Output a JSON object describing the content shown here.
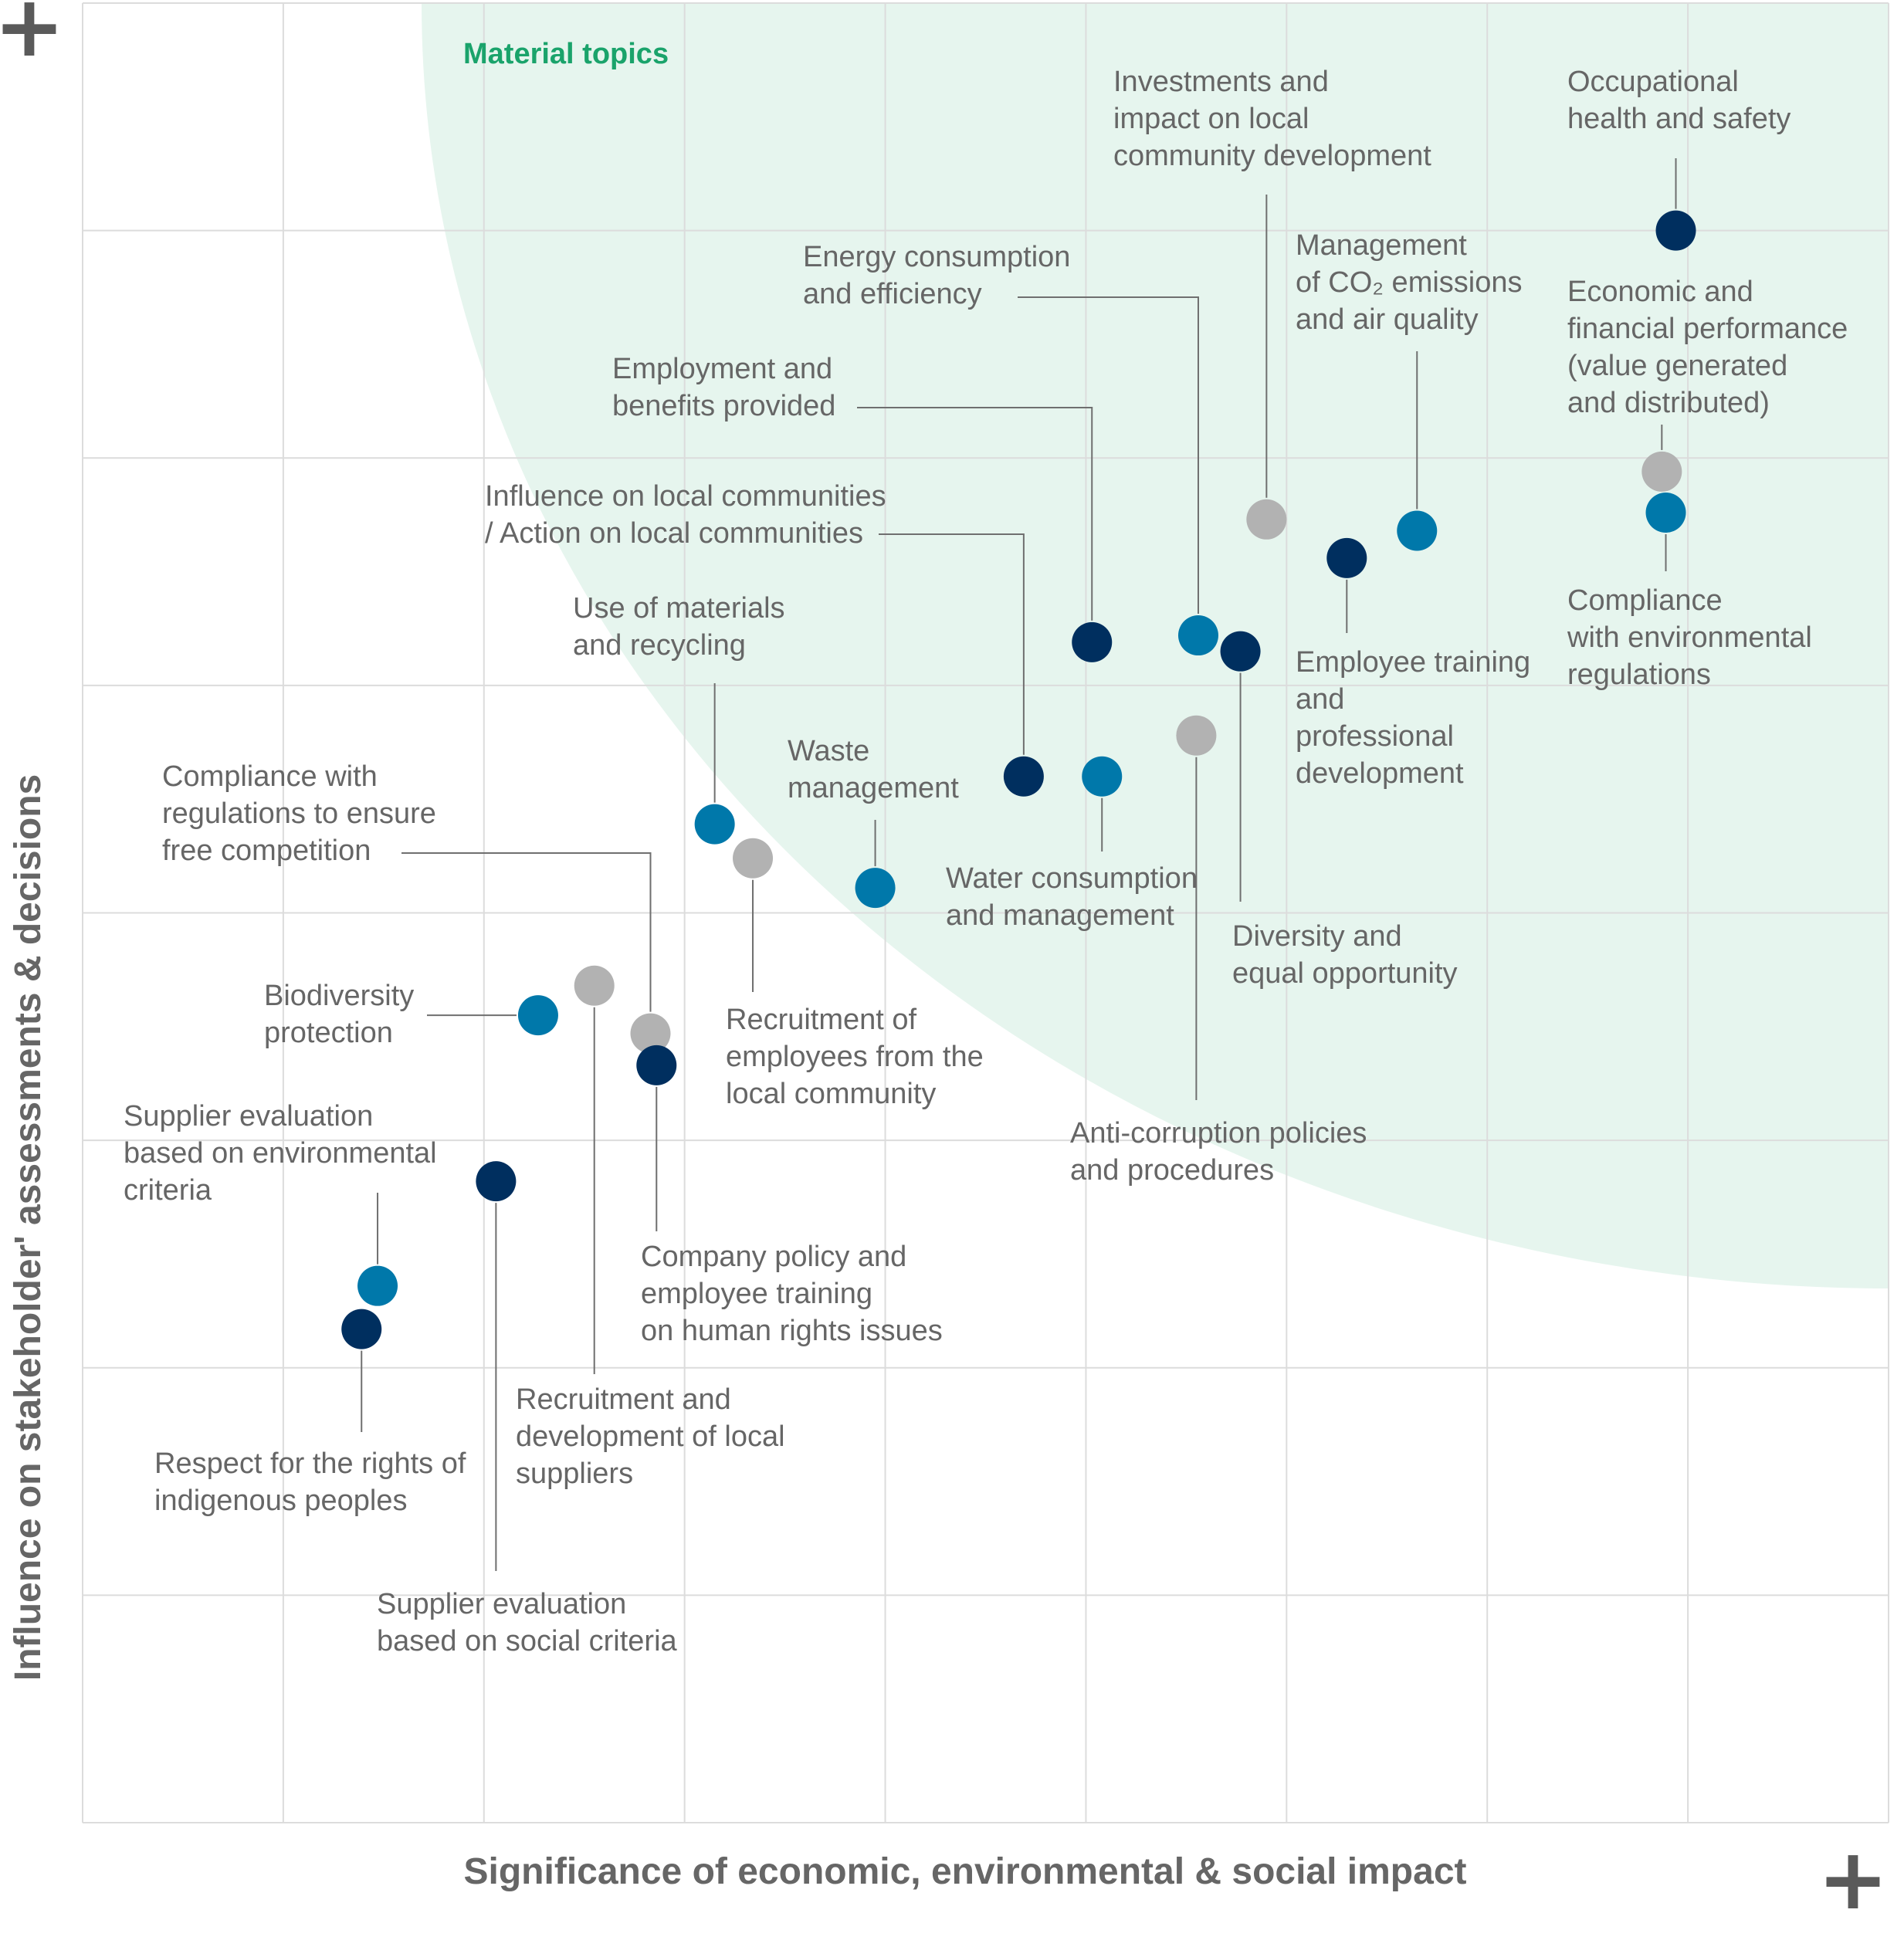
{
  "chart_data": {
    "type": "scatter",
    "title": "",
    "xlabel": "Significance of economic, environmental & social impact",
    "ylabel": "Influence on stakeholder' assessments & decisions",
    "xlim": [
      0,
      9
    ],
    "ylim": [
      0,
      8
    ],
    "axis_end_marker": "+",
    "grid": true,
    "region_label": "Material topics",
    "colors": {
      "dark": "#002f5f",
      "blue": "#0078aa",
      "gray": "#b2b2b2",
      "region": "#e6f5ee",
      "region_label": "#1aa36b"
    },
    "points": [
      {
        "label": "Occupational health and safety",
        "lines": [
          "Occupational",
          "health and safety"
        ],
        "x": 7.94,
        "y": 7.0,
        "color": "dark"
      },
      {
        "label": "Economic and financial performance (value generated and distributed)",
        "lines": [
          "Economic and",
          "financial performance",
          "(value generated",
          "and distributed)"
        ],
        "x": 7.87,
        "y": 5.94,
        "color": "gray"
      },
      {
        "label": "Compliance with environmental regulations",
        "lines": [
          "Compliance",
          "with environmental",
          "regulations"
        ],
        "x": 7.89,
        "y": 5.76,
        "color": "blue"
      },
      {
        "label": "Investments and impact on local community development",
        "lines": [
          "Investments and",
          "impact on local",
          "community development"
        ],
        "x": 5.9,
        "y": 5.73,
        "color": "gray"
      },
      {
        "label": "Management of CO2 emissions and air quality",
        "lines": [
          "Management",
          "of CO₂ emissions",
          "and air quality"
        ],
        "x": 6.65,
        "y": 5.68,
        "color": "blue"
      },
      {
        "label": "Employee training and professional development",
        "lines": [
          "Employee training",
          "and",
          "professional",
          "development"
        ],
        "x": 6.3,
        "y": 5.56,
        "color": "dark"
      },
      {
        "label": "Energy consumption and efficiency",
        "lines": [
          "Energy consumption",
          "and efficiency"
        ],
        "x": 5.56,
        "y": 5.22,
        "color": "blue"
      },
      {
        "label": "Employment and benefits provided",
        "lines": [
          "Employment and",
          "benefits provided"
        ],
        "x": 5.03,
        "y": 5.19,
        "color": "dark"
      },
      {
        "label": "Diversity and equal opportunity",
        "lines": [
          "Diversity and",
          "equal opportunity"
        ],
        "x": 5.77,
        "y": 5.15,
        "color": "dark"
      },
      {
        "label": "Anti-corruption policies and procedures",
        "lines": [
          "Anti-corruption policies",
          "and procedures"
        ],
        "x": 5.55,
        "y": 4.78,
        "color": "gray"
      },
      {
        "label": "Influence on local communities / Action on local communities",
        "lines": [
          "Influence on local communities",
          "/ Action on local communities"
        ],
        "x": 4.69,
        "y": 4.6,
        "color": "dark"
      },
      {
        "label": "Water consumption and management",
        "lines": [
          "Water consumption",
          "and management"
        ],
        "x": 5.08,
        "y": 4.6,
        "color": "blue"
      },
      {
        "label": "Use of materials and recycling",
        "lines": [
          "Use of materials",
          "and recycling"
        ],
        "x": 3.15,
        "y": 4.39,
        "color": "blue"
      },
      {
        "label": "Recruitment of employees from the local community",
        "lines": [
          "Recruitment of",
          "employees from the",
          "local community"
        ],
        "x": 3.34,
        "y": 4.24,
        "color": "gray"
      },
      {
        "label": "Waste management",
        "lines": [
          "Waste",
          "management"
        ],
        "x": 3.95,
        "y": 4.11,
        "color": "blue"
      },
      {
        "label": "Recruitment and development of local suppliers",
        "lines": [
          "Recruitment and",
          "development of local",
          "suppliers"
        ],
        "x": 2.55,
        "y": 3.68,
        "color": "gray"
      },
      {
        "label": "Biodiversity protection",
        "lines": [
          "Biodiversity",
          "protection"
        ],
        "x": 2.27,
        "y": 3.55,
        "color": "blue"
      },
      {
        "label": "Compliance with regulations to ensure free competition",
        "lines": [
          "Compliance with",
          "regulations to ensure",
          "free competition"
        ],
        "x": 2.83,
        "y": 3.47,
        "color": "gray"
      },
      {
        "label": "Company policy and employee training on human rights issues",
        "lines": [
          "Company policy and",
          "employee training",
          "on human rights issues"
        ],
        "x": 2.86,
        "y": 3.33,
        "color": "dark"
      },
      {
        "label": "Supplier evaluation based on social criteria",
        "lines": [
          "Supplier evaluation",
          "based on social criteria"
        ],
        "x": 2.06,
        "y": 2.82,
        "color": "dark"
      },
      {
        "label": "Supplier evaluation based on environmental criteria",
        "lines": [
          "Supplier evaluation",
          "based on environmental",
          "criteria"
        ],
        "x": 1.47,
        "y": 2.36,
        "color": "blue"
      },
      {
        "label": "Respect for the rights of indigenous peoples",
        "lines": [
          "Respect for the rights of",
          "indigenous peoples"
        ],
        "x": 1.39,
        "y": 2.17,
        "color": "dark"
      }
    ]
  }
}
